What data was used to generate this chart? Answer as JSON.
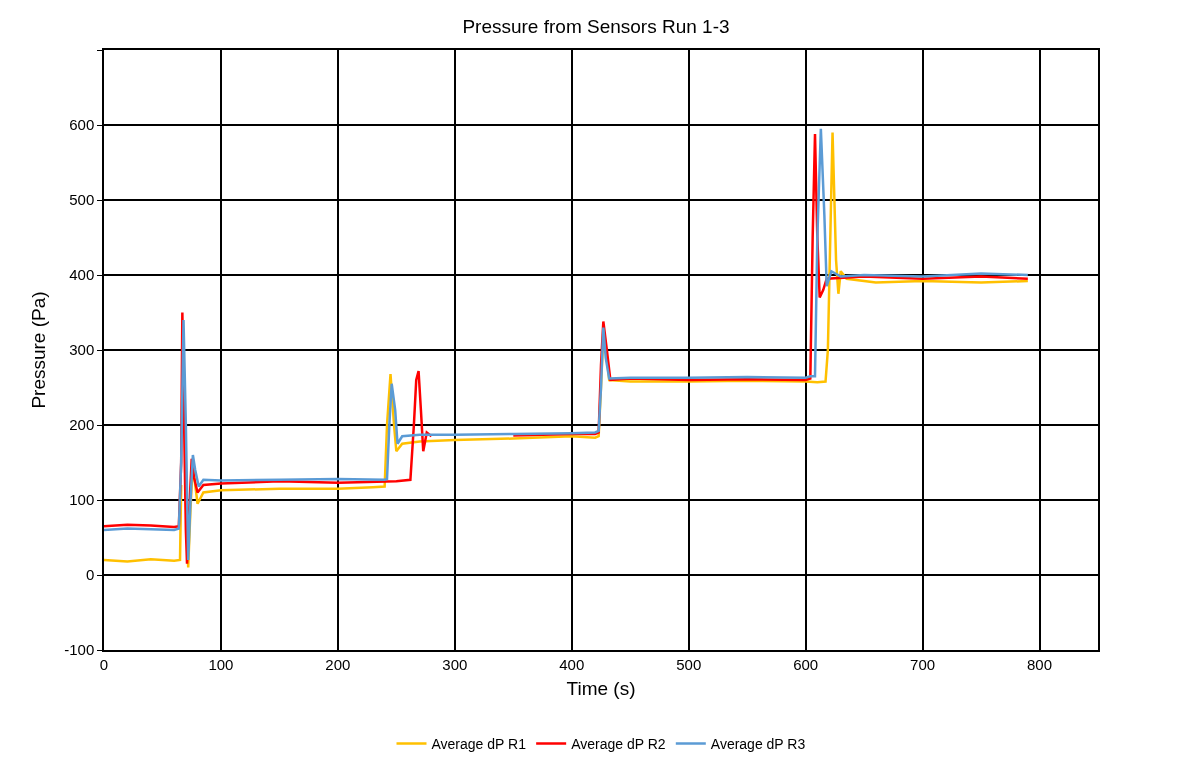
{
  "chart_data": {
    "type": "line",
    "title": "Pressure from Sensors Run 1-3",
    "xlabel": "Time (s)",
    "ylabel": "Pressure (Pa)",
    "xlim": [
      0,
      850
    ],
    "xticks": [
      0,
      100,
      200,
      300,
      400,
      500,
      600,
      700,
      800
    ],
    "ylim": [
      -100,
      700
    ],
    "yticks": [
      -100,
      0,
      100,
      200,
      300,
      400,
      500,
      600,
      {
        "value": 700,
        "label": null
      }
    ],
    "grid": true,
    "legend": "bottom",
    "marker": "none",
    "line_style": "solid",
    "series": [
      {
        "name": "Average dP R1",
        "color": "#ffc000",
        "x": [
          0,
          20,
          40,
          60,
          65,
          66,
          68,
          70,
          72,
          74,
          76,
          78,
          80,
          85,
          100,
          150,
          200,
          230,
          240,
          242,
          245,
          248,
          250,
          255,
          270,
          300,
          350,
          400,
          420,
          423,
          425,
          427,
          430,
          432,
          450,
          500,
          550,
          600,
          610,
          617,
          619,
          623,
          626,
          628,
          630,
          635,
          660,
          700,
          750,
          790
        ],
        "values": [
          20,
          18,
          21,
          19,
          20,
          120,
          null,
          100,
          10,
          90,
          150,
          120,
          95,
          110,
          113,
          115,
          115,
          117,
          118,
          200,
          268,
          200,
          165,
          175,
          178,
          180,
          182,
          185,
          183,
          185,
          250,
          325,
          290,
          260,
          258,
          258,
          259,
          258,
          257,
          258,
          300,
          590,
          420,
          375,
          405,
          395,
          390,
          392,
          390,
          392
        ]
      },
      {
        "name": "Average dP R2",
        "color": "#ff0000",
        "x": [
          0,
          20,
          40,
          60,
          64,
          66,
          67,
          68,
          70,
          71,
          73,
          75,
          77,
          80,
          85,
          100,
          150,
          200,
          250,
          262,
          265,
          267,
          269,
          271,
          273,
          276,
          280,
          300,
          350,
          400,
          420,
          423,
          425,
          427,
          430,
          433,
          450,
          500,
          550,
          600,
          604,
          606,
          608,
          610,
          612,
          615,
          618,
          650,
          700,
          750,
          790
        ],
        "values": [
          65,
          67,
          66,
          64,
          65,
          150,
          350,
          250,
          60,
          15,
          90,
          155,
          130,
          110,
          120,
          122,
          125,
          123,
          125,
          127,
          200,
          260,
          272,
          220,
          165,
          190,
          185,
          null,
          186,
          188,
          188,
          190,
          280,
          338,
          300,
          260,
          262,
          260,
          261,
          260,
          262,
          450,
          588,
          450,
          370,
          380,
          395,
          398,
          395,
          398,
          395
        ]
      },
      {
        "name": "Average dP R3",
        "color": "#5b9bd5",
        "x": [
          0,
          20,
          40,
          60,
          64,
          66,
          68,
          70,
          72,
          74,
          76,
          78,
          81,
          85,
          100,
          150,
          200,
          240,
          242,
          244,
          246,
          249,
          251,
          255,
          270,
          300,
          350,
          400,
          420,
          423,
          425,
          427,
          429,
          432,
          450,
          500,
          550,
          600,
          604,
          608,
          610,
          613,
          616,
          618,
          622,
          630,
          650,
          700,
          750,
          790
        ],
        "values": [
          60,
          62,
          61,
          60,
          62,
          150,
          340,
          200,
          20,
          100,
          160,
          140,
          118,
          127,
          126,
          127,
          128,
          127,
          128,
          200,
          255,
          220,
          175,
          185,
          187,
          187,
          188,
          189,
          190,
          192,
          250,
          330,
          290,
          262,
          263,
          263,
          264,
          263,
          265,
          265,
          450,
          595,
          480,
          385,
          405,
          398,
          400,
          398,
          402,
          400
        ]
      }
    ]
  }
}
